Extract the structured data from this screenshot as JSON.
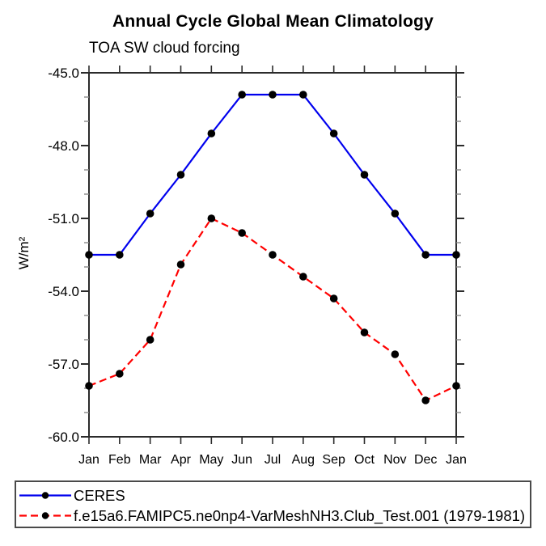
{
  "page": {
    "title": "Annual Cycle Global Mean Climatology",
    "subtitle": "TOA SW cloud forcing",
    "ylabel": "W/m²"
  },
  "colors": {
    "background": "#ffffff",
    "axis": "#2b2b2b",
    "minor_tick": "#8a8a8a",
    "text": "#000000",
    "ceres_blue": "#0000ee",
    "model_red": "#ff0000",
    "marker_black": "#000000"
  },
  "chart_data": {
    "type": "line",
    "title": "Annual Cycle Global Mean Climatology",
    "subtitle": "TOA SW cloud forcing",
    "xlabel": "",
    "ylabel": "W/m²",
    "categories": [
      "Jan",
      "Feb",
      "Mar",
      "Apr",
      "May",
      "Jun",
      "Jul",
      "Aug",
      "Sep",
      "Oct",
      "Nov",
      "Dec",
      "Jan"
    ],
    "ylim": [
      -60.0,
      -45.0
    ],
    "y_major_tick_step": 3,
    "y_minor_tick_step": 1,
    "y_tick_labels": [
      "-45.0",
      "-48.0",
      "-51.0",
      "-54.0",
      "-57.0",
      "-60.0"
    ],
    "grid": false,
    "legend_position": "bottom-left-box",
    "series": [
      {
        "name": "CERES",
        "color": "#0000ee",
        "style": "solid",
        "marker": "filled-circle",
        "marker_color": "#000000",
        "values": [
          -52.5,
          -52.5,
          -50.8,
          -49.2,
          -47.5,
          -45.9,
          -45.9,
          -45.9,
          -47.5,
          -49.2,
          -50.8,
          -52.5,
          -52.5
        ]
      },
      {
        "name": "f.e15a6.FAMIPC5.ne0np4-VarMeshNH3.Club_Test.001 (1979-1981)",
        "color": "#ff0000",
        "style": "dashed",
        "marker": "filled-circle",
        "marker_color": "#000000",
        "values": [
          -57.9,
          -57.4,
          -56.0,
          -52.9,
          -51.0,
          -51.6,
          -52.5,
          -53.4,
          -54.3,
          -55.7,
          -56.6,
          -58.5,
          -57.9
        ]
      }
    ]
  }
}
